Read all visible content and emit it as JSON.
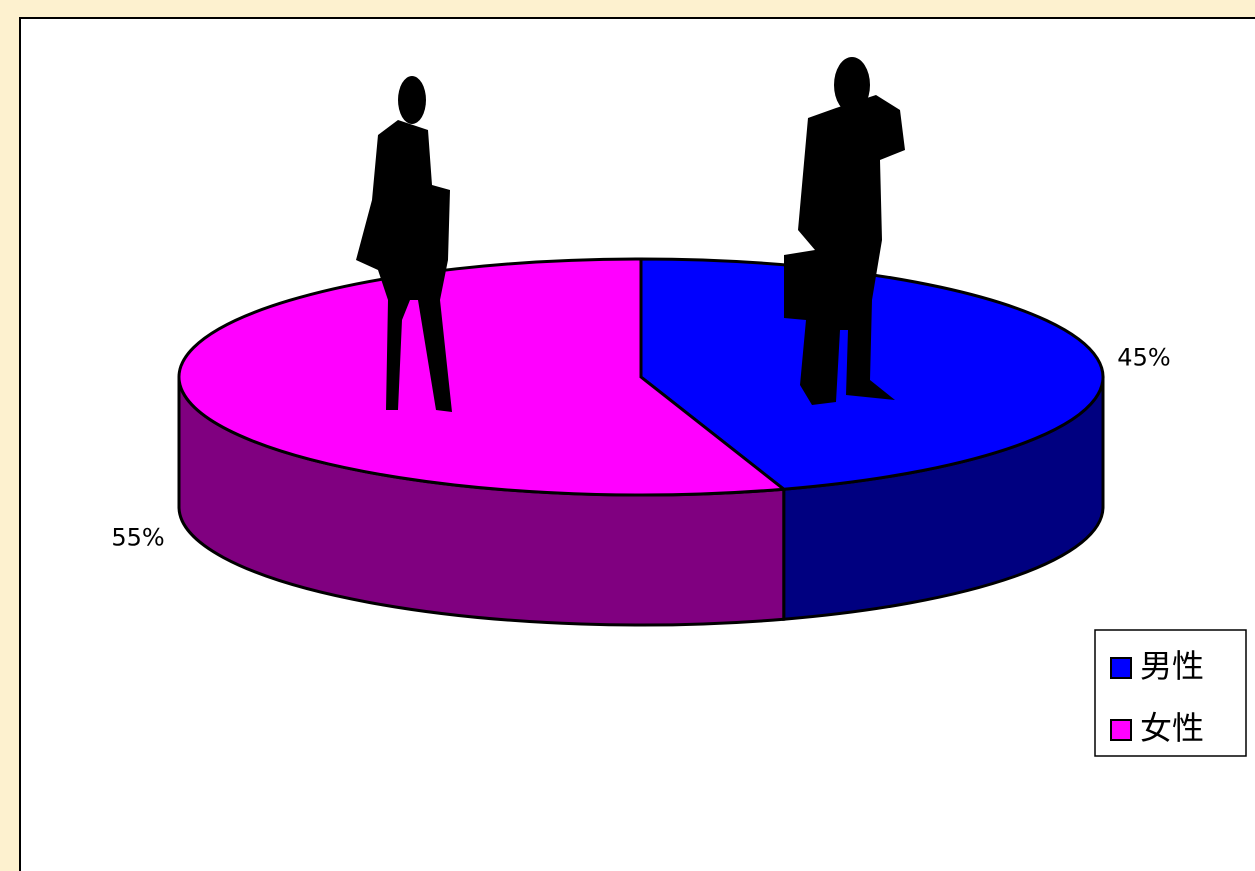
{
  "chart_data": {
    "type": "pie3d",
    "categories": [
      "男性",
      "女性"
    ],
    "values": [
      45,
      55
    ],
    "value_labels": [
      "45%",
      "55%"
    ],
    "colors": [
      "#0000ff",
      "#ff00ff"
    ],
    "side_colors": [
      "#000080",
      "#800080"
    ],
    "legend": "right"
  }
}
